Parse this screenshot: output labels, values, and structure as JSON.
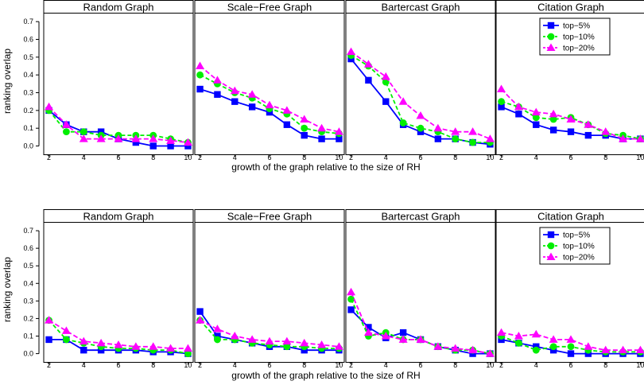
{
  "chart_data": [
    {
      "type": "line",
      "row": "top",
      "ylabel": "ranking overlap",
      "xlabel": "growth of the graph relative to the size of RH",
      "ylim": [
        -0.02,
        0.75
      ],
      "yticks": [
        "0.0",
        "0.1",
        "0.2",
        "0.3",
        "0.4",
        "0.5",
        "0.6",
        "0.7"
      ],
      "xlim": [
        1.7,
        10.3
      ],
      "xticks": [
        "2",
        "4",
        "6",
        "8",
        "10"
      ],
      "x": [
        2,
        3,
        4,
        5,
        6,
        7,
        8,
        9,
        10
      ],
      "legend": {
        "panel": 3,
        "position": "top-right"
      },
      "panels": [
        {
          "title": "Random Graph",
          "series": [
            {
              "name": "top−5%",
              "values": [
                0.2,
                0.12,
                0.08,
                0.08,
                0.04,
                0.02,
                0.0,
                0.0,
                0.0
              ]
            },
            {
              "name": "top−10%",
              "values": [
                0.2,
                0.08,
                0.08,
                0.06,
                0.06,
                0.06,
                0.06,
                0.04,
                0.02
              ]
            },
            {
              "name": "top−20%",
              "values": [
                0.22,
                0.12,
                0.04,
                0.04,
                0.04,
                0.04,
                0.04,
                0.03,
                0.02
              ]
            }
          ]
        },
        {
          "title": "Scale−Free Graph",
          "series": [
            {
              "name": "top−5%",
              "values": [
                0.32,
                0.29,
                0.25,
                0.22,
                0.19,
                0.12,
                0.06,
                0.04,
                0.04
              ]
            },
            {
              "name": "top−10%",
              "values": [
                0.4,
                0.35,
                0.3,
                0.27,
                0.21,
                0.18,
                0.1,
                0.08,
                0.07
              ]
            },
            {
              "name": "top−20%",
              "values": [
                0.45,
                0.37,
                0.31,
                0.29,
                0.23,
                0.2,
                0.15,
                0.1,
                0.08
              ]
            }
          ]
        },
        {
          "title": "Bartercast Graph",
          "series": [
            {
              "name": "top−5%",
              "values": [
                0.49,
                0.37,
                0.25,
                0.12,
                0.08,
                0.04,
                0.04,
                0.02,
                0.01
              ]
            },
            {
              "name": "top−10%",
              "values": [
                0.51,
                0.45,
                0.36,
                0.13,
                0.1,
                0.08,
                0.04,
                0.02,
                0.02
              ]
            },
            {
              "name": "top−20%",
              "values": [
                0.53,
                0.46,
                0.39,
                0.25,
                0.17,
                0.1,
                0.08,
                0.08,
                0.04
              ]
            }
          ]
        },
        {
          "title": "Citation Graph",
          "series": [
            {
              "name": "top−5%",
              "values": [
                0.22,
                0.18,
                0.12,
                0.09,
                0.08,
                0.06,
                0.06,
                0.04,
                0.04
              ]
            },
            {
              "name": "top−10%",
              "values": [
                0.25,
                0.22,
                0.16,
                0.15,
                0.16,
                0.12,
                0.07,
                0.06,
                0.04
              ]
            },
            {
              "name": "top−20%",
              "values": [
                0.32,
                0.22,
                0.19,
                0.18,
                0.15,
                0.12,
                0.08,
                0.04,
                0.04
              ]
            }
          ]
        }
      ]
    },
    {
      "type": "line",
      "row": "bottom",
      "ylabel": "ranking overlap",
      "xlabel": "growth of the graph relative to the size of RH",
      "ylim": [
        -0.02,
        0.75
      ],
      "yticks": [
        "0.0",
        "0.1",
        "0.2",
        "0.3",
        "0.4",
        "0.5",
        "0.6",
        "0.7"
      ],
      "xlim": [
        1.7,
        10.3
      ],
      "xticks": [
        "2",
        "4",
        "6",
        "8",
        "10"
      ],
      "x": [
        2,
        3,
        4,
        5,
        6,
        7,
        8,
        9,
        10
      ],
      "legend": {
        "panel": 3,
        "position": "top-right"
      },
      "panels": [
        {
          "title": "Random Graph",
          "series": [
            {
              "name": "top−5%",
              "values": [
                0.08,
                0.08,
                0.02,
                0.02,
                0.02,
                0.02,
                0.01,
                0.01,
                0.0
              ]
            },
            {
              "name": "top−10%",
              "values": [
                0.19,
                0.08,
                0.06,
                0.04,
                0.03,
                0.03,
                0.02,
                0.02,
                0.0
              ]
            },
            {
              "name": "top−20%",
              "values": [
                0.19,
                0.13,
                0.07,
                0.06,
                0.05,
                0.04,
                0.04,
                0.03,
                0.03
              ]
            }
          ]
        },
        {
          "title": "Scale−Free Graph",
          "series": [
            {
              "name": "top−5%",
              "values": [
                0.24,
                0.1,
                0.08,
                0.06,
                0.04,
                0.04,
                0.02,
                0.02,
                0.02
              ]
            },
            {
              "name": "top−10%",
              "values": [
                0.19,
                0.08,
                0.08,
                0.06,
                0.05,
                0.04,
                0.04,
                0.03,
                0.03
              ]
            },
            {
              "name": "top−20%",
              "values": [
                0.19,
                0.14,
                0.1,
                0.08,
                0.07,
                0.07,
                0.06,
                0.05,
                0.04
              ]
            }
          ]
        },
        {
          "title": "Bartercast Graph",
          "series": [
            {
              "name": "top−5%",
              "values": [
                0.25,
                0.15,
                0.09,
                0.12,
                0.08,
                0.04,
                0.02,
                0.0,
                0.0
              ]
            },
            {
              "name": "top−10%",
              "values": [
                0.31,
                0.1,
                0.12,
                0.08,
                0.08,
                0.04,
                0.02,
                0.02,
                0.0
              ]
            },
            {
              "name": "top−20%",
              "values": [
                0.35,
                0.12,
                0.1,
                0.08,
                0.08,
                0.04,
                0.03,
                0.02,
                0.0
              ]
            }
          ]
        },
        {
          "title": "Citation Graph",
          "series": [
            {
              "name": "top−5%",
              "values": [
                0.08,
                0.06,
                0.04,
                0.02,
                0.0,
                0.0,
                0.0,
                0.0,
                0.0
              ]
            },
            {
              "name": "top−10%",
              "values": [
                0.1,
                0.06,
                0.02,
                0.04,
                0.04,
                0.02,
                0.01,
                0.01,
                0.01
              ]
            },
            {
              "name": "top−20%",
              "values": [
                0.12,
                0.1,
                0.11,
                0.08,
                0.08,
                0.04,
                0.02,
                0.02,
                0.02
              ]
            }
          ]
        }
      ]
    }
  ],
  "colors": {
    "top−5%": "#0000ff",
    "top−10%": "#00ee00",
    "top−20%": "#ff00ff",
    "strip_background": "#ffffff",
    "frame": "#000000"
  },
  "markers": {
    "top−5%": "square",
    "top−10%": "circle",
    "top−20%": "triangle"
  }
}
